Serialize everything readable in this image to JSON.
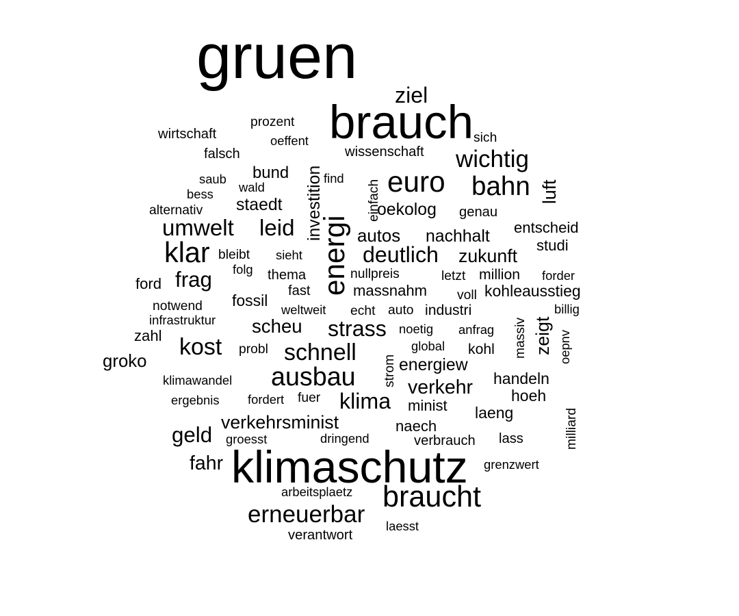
{
  "chart_data": {
    "type": "wordcloud",
    "color": "#000000",
    "words": [
      {
        "text": "gruen",
        "weight": 100
      },
      {
        "text": "klimaschutz",
        "weight": 72
      },
      {
        "text": "brauch",
        "weight": 75
      },
      {
        "text": "braucht",
        "weight": 47
      },
      {
        "text": "energi",
        "weight": 46
      },
      {
        "text": "euro",
        "weight": 46
      },
      {
        "text": "bahn",
        "weight": 42
      },
      {
        "text": "klar",
        "weight": 45
      },
      {
        "text": "ausbau",
        "weight": 41
      },
      {
        "text": "erneuerbar",
        "weight": 38
      },
      {
        "text": "umwelt",
        "weight": 36
      },
      {
        "text": "leid",
        "weight": 36
      },
      {
        "text": "wichtig",
        "weight": 38
      },
      {
        "text": "kost",
        "weight": 37
      },
      {
        "text": "schnell",
        "weight": 37
      },
      {
        "text": "ziel",
        "weight": 35
      },
      {
        "text": "deutlich",
        "weight": 35
      },
      {
        "text": "strass",
        "weight": 35
      },
      {
        "text": "klima",
        "weight": 35
      },
      {
        "text": "frag",
        "weight": 34
      },
      {
        "text": "geld",
        "weight": 34
      },
      {
        "text": "fahr",
        "weight": 31
      },
      {
        "text": "verkehr",
        "weight": 31
      },
      {
        "text": "zeigt",
        "weight": 29
      },
      {
        "text": "luft",
        "weight": 29
      },
      {
        "text": "verkehrsminist",
        "weight": 29
      },
      {
        "text": "scheu",
        "weight": 30
      },
      {
        "text": "zukunft",
        "weight": 29
      },
      {
        "text": "groko",
        "weight": 28
      },
      {
        "text": "autos",
        "weight": 28
      },
      {
        "text": "oekolog",
        "weight": 27
      },
      {
        "text": "nachhalt",
        "weight": 27
      },
      {
        "text": "energiew",
        "weight": 27
      },
      {
        "text": "investition",
        "weight": 27
      },
      {
        "text": "staedt",
        "weight": 27
      },
      {
        "text": "fossil",
        "weight": 25
      },
      {
        "text": "bund",
        "weight": 26
      },
      {
        "text": "hoeh",
        "weight": 25
      },
      {
        "text": "handeln",
        "weight": 25
      },
      {
        "text": "laeng",
        "weight": 25
      },
      {
        "text": "minist",
        "weight": 24
      },
      {
        "text": "naech",
        "weight": 24
      },
      {
        "text": "kohleausstieg",
        "weight": 25
      },
      {
        "text": "entscheid",
        "weight": 24
      },
      {
        "text": "studi",
        "weight": 24
      },
      {
        "text": "massnahm",
        "weight": 24
      },
      {
        "text": "zahl",
        "weight": 24
      },
      {
        "text": "ford",
        "weight": 24
      },
      {
        "text": "million",
        "weight": 23
      },
      {
        "text": "kohl",
        "weight": 23
      },
      {
        "text": "industri",
        "weight": 23
      },
      {
        "text": "wissenschaft",
        "weight": 22
      },
      {
        "text": "wirtschaft",
        "weight": 22
      },
      {
        "text": "falsch",
        "weight": 22
      },
      {
        "text": "fast",
        "weight": 22
      },
      {
        "text": "thema",
        "weight": 22
      },
      {
        "text": "verbrauch",
        "weight": 22
      },
      {
        "text": "lass",
        "weight": 22
      },
      {
        "text": "verantwort",
        "weight": 22
      },
      {
        "text": "genau",
        "weight": 22
      },
      {
        "text": "notwend",
        "weight": 21
      },
      {
        "text": "alternativ",
        "weight": 21
      },
      {
        "text": "massiv",
        "weight": 21
      },
      {
        "text": "strom",
        "weight": 21
      },
      {
        "text": "einfach",
        "weight": 21
      },
      {
        "text": "milliard",
        "weight": 21
      },
      {
        "text": "probl",
        "weight": 21
      },
      {
        "text": "sich",
        "weight": 21
      },
      {
        "text": "prozent",
        "weight": 21
      },
      {
        "text": "bleibt",
        "weight": 21
      },
      {
        "text": "echt",
        "weight": 21
      },
      {
        "text": "auto",
        "weight": 21
      },
      {
        "text": "letzt",
        "weight": 21
      },
      {
        "text": "voll",
        "weight": 21
      },
      {
        "text": "nullpreis",
        "weight": 21
      },
      {
        "text": "fuer",
        "weight": 21
      },
      {
        "text": "find",
        "weight": 20
      },
      {
        "text": "noetig",
        "weight": 20
      },
      {
        "text": "arbeitsplaetz",
        "weight": 20
      },
      {
        "text": "saub",
        "weight": 20
      },
      {
        "text": "bess",
        "weight": 20
      },
      {
        "text": "sieht",
        "weight": 20
      },
      {
        "text": "folg",
        "weight": 20
      },
      {
        "text": "global",
        "weight": 20
      },
      {
        "text": "anfrag",
        "weight": 20
      },
      {
        "text": "billig",
        "weight": 20
      },
      {
        "text": "forder",
        "weight": 20
      },
      {
        "text": "klimawandel",
        "weight": 20
      },
      {
        "text": "oeffent",
        "weight": 20
      },
      {
        "text": "wald",
        "weight": 20
      },
      {
        "text": "infrastruktur",
        "weight": 20
      },
      {
        "text": "ergebnis",
        "weight": 20
      },
      {
        "text": "fordert",
        "weight": 20
      },
      {
        "text": "groesst",
        "weight": 20
      },
      {
        "text": "dringend",
        "weight": 20
      },
      {
        "text": "laesst",
        "weight": 20
      },
      {
        "text": "weltweit",
        "weight": 20
      },
      {
        "text": "oepnv",
        "weight": 20
      },
      {
        "text": "grenzwert",
        "weight": 20
      }
    ]
  }
}
